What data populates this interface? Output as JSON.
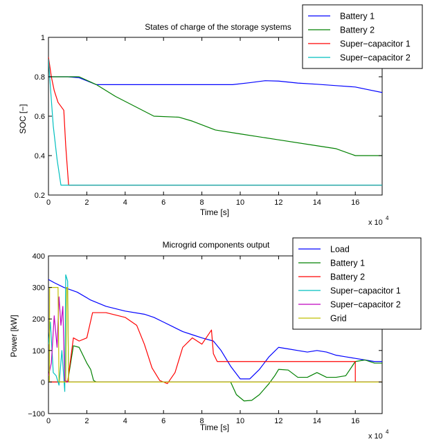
{
  "chart_data": [
    {
      "type": "line",
      "title": "States of charge of the storage systems",
      "xlabel": "Time [s]",
      "ylabel": "SOC [−]",
      "x_multiplier": "x 10",
      "x_multiplier_exp": "4",
      "xlim": [
        0,
        17.4
      ],
      "ylim": [
        0.2,
        1.0
      ],
      "xticks": [
        0,
        2,
        4,
        6,
        8,
        10,
        12,
        14,
        16
      ],
      "yticks": [
        0.2,
        0.4,
        0.6,
        0.8,
        1.0
      ],
      "xtick_labels": [
        "0",
        "2",
        "4",
        "6",
        "8",
        "10",
        "12",
        "14",
        "16"
      ],
      "ytick_labels": [
        "0.2",
        "0.4",
        "0.6",
        "0.8",
        "1"
      ],
      "grid": false,
      "legend_position": "top-right",
      "series": [
        {
          "name": "Battery 1",
          "color": "#0000ff",
          "x": [
            0,
            1.0,
            1.6,
            2.5,
            4,
            6,
            8,
            9.6,
            10.5,
            11.3,
            12,
            13,
            14,
            15,
            16,
            16.5,
            17.4
          ],
          "y": [
            0.8,
            0.8,
            0.795,
            0.76,
            0.76,
            0.76,
            0.76,
            0.76,
            0.77,
            0.78,
            0.778,
            0.768,
            0.762,
            0.755,
            0.748,
            0.738,
            0.72
          ]
        },
        {
          "name": "Battery 2",
          "color": "#008000",
          "x": [
            0,
            1.6,
            2.5,
            3.5,
            4.5,
            5.5,
            6.8,
            7.5,
            8.7,
            10,
            12,
            14,
            15,
            16,
            17.4
          ],
          "y": [
            0.8,
            0.8,
            0.76,
            0.7,
            0.65,
            0.6,
            0.595,
            0.575,
            0.53,
            0.51,
            0.48,
            0.45,
            0.435,
            0.4,
            0.4
          ]
        },
        {
          "name": "Super−capacitor 1",
          "color": "#ff0000",
          "x": [
            0,
            0.15,
            0.3,
            0.5,
            0.8,
            0.9,
            1.05,
            1.2,
            17.4
          ],
          "y": [
            0.9,
            0.8,
            0.73,
            0.67,
            0.63,
            0.45,
            0.25,
            0.25,
            0.25
          ]
        },
        {
          "name": "Super−capacitor 2",
          "color": "#00bfbf",
          "x": [
            0,
            0.1,
            0.25,
            0.45,
            0.65,
            0.8,
            17.4
          ],
          "y": [
            0.89,
            0.75,
            0.55,
            0.38,
            0.25,
            0.25,
            0.25
          ]
        }
      ]
    },
    {
      "type": "line",
      "title": "Microgrid components output",
      "xlabel": "Time [s]",
      "ylabel": "Power [kW]",
      "x_multiplier": "x 10",
      "x_multiplier_exp": "4",
      "xlim": [
        0,
        17.4
      ],
      "ylim": [
        -100,
        400
      ],
      "xticks": [
        0,
        2,
        4,
        6,
        8,
        10,
        12,
        14,
        16
      ],
      "yticks": [
        -100,
        0,
        100,
        200,
        300,
        400
      ],
      "xtick_labels": [
        "0",
        "2",
        "4",
        "6",
        "8",
        "10",
        "12",
        "14",
        "16"
      ],
      "ytick_labels": [
        "−100",
        "0",
        "100",
        "200",
        "300",
        "400"
      ],
      "grid": false,
      "legend_position": "top-right",
      "series": [
        {
          "name": "Load",
          "color": "#0000ff",
          "x": [
            0,
            0.3,
            0.8,
            1.5,
            2.2,
            3.0,
            4.0,
            5.0,
            5.5,
            6.0,
            6.5,
            7.0,
            7.5,
            8.0,
            8.6,
            9.0,
            9.5,
            10.0,
            10.5,
            11.0,
            11.5,
            12.0,
            12.5,
            13.0,
            13.5,
            14.0,
            14.5,
            15.0,
            15.5,
            16.0,
            16.5,
            17.0,
            17.4
          ],
          "y": [
            325,
            315,
            300,
            285,
            260,
            240,
            225,
            215,
            205,
            190,
            175,
            160,
            150,
            140,
            130,
            100,
            50,
            10,
            10,
            40,
            80,
            110,
            105,
            100,
            95,
            100,
            95,
            85,
            80,
            75,
            70,
            65,
            65
          ]
        },
        {
          "name": "Battery 1",
          "color": "#008000",
          "x": [
            0,
            1.0,
            1.3,
            1.6,
            2.0,
            2.2,
            2.35,
            2.5,
            4,
            6,
            8,
            9.5,
            9.8,
            10.2,
            10.6,
            11.0,
            11.5,
            11.8,
            12.0,
            12.5,
            13.0,
            13.5,
            14.0,
            14.5,
            15.0,
            15.5,
            16.0,
            16.5,
            17.0,
            17.4
          ],
          "y": [
            0,
            0,
            115,
            110,
            60,
            40,
            5,
            0,
            0,
            0,
            0,
            0,
            -40,
            -60,
            -58,
            -40,
            -5,
            20,
            40,
            38,
            15,
            15,
            30,
            15,
            15,
            20,
            65,
            70,
            60,
            60
          ]
        },
        {
          "name": "Battery 2",
          "color": "#ff0000",
          "x": [
            0,
            1.0,
            1.3,
            1.6,
            2.0,
            2.3,
            3.0,
            4.0,
            4.6,
            5.0,
            5.4,
            5.8,
            6.2,
            6.6,
            7.0,
            7.5,
            8.0,
            8.5,
            8.6,
            8.8,
            10.0,
            12.0,
            14.0,
            16.0,
            16.0,
            17.4
          ],
          "y": [
            0,
            0,
            140,
            130,
            140,
            220,
            220,
            205,
            180,
            120,
            45,
            5,
            -5,
            30,
            110,
            140,
            120,
            165,
            90,
            65,
            65,
            65,
            65,
            65,
            0,
            0
          ]
        },
        {
          "name": "Super−capacitor 1",
          "color": "#00bfbf",
          "x": [
            0,
            0.1,
            0.25,
            0.4,
            0.55,
            0.7,
            0.85,
            0.9,
            1.0,
            1.05,
            1.2,
            2,
            17.4
          ],
          "y": [
            120,
            190,
            30,
            20,
            -10,
            100,
            -30,
            340,
            320,
            0,
            0,
            0,
            0
          ]
        },
        {
          "name": "Super−capacitor 2",
          "color": "#bf00bf",
          "x": [
            0,
            0.15,
            0.3,
            0.45,
            0.55,
            0.65,
            0.75,
            0.85,
            0.9,
            1.0,
            2,
            17.4
          ],
          "y": [
            20,
            60,
            210,
            110,
            270,
            180,
            240,
            0,
            5,
            0,
            0,
            0
          ]
        },
        {
          "name": "Grid",
          "color": "#bfbf00",
          "x": [
            0,
            0.05,
            0.06,
            0.5,
            0.55,
            0.9,
            0.95,
            1.0,
            1.05,
            1.1,
            2,
            4,
            6,
            8,
            10,
            12,
            14,
            16,
            17.4
          ],
          "y": [
            0,
            0,
            300,
            300,
            0,
            0,
            300,
            300,
            0,
            0,
            0,
            0,
            0,
            0,
            0,
            0,
            0,
            0,
            0
          ]
        }
      ]
    }
  ]
}
